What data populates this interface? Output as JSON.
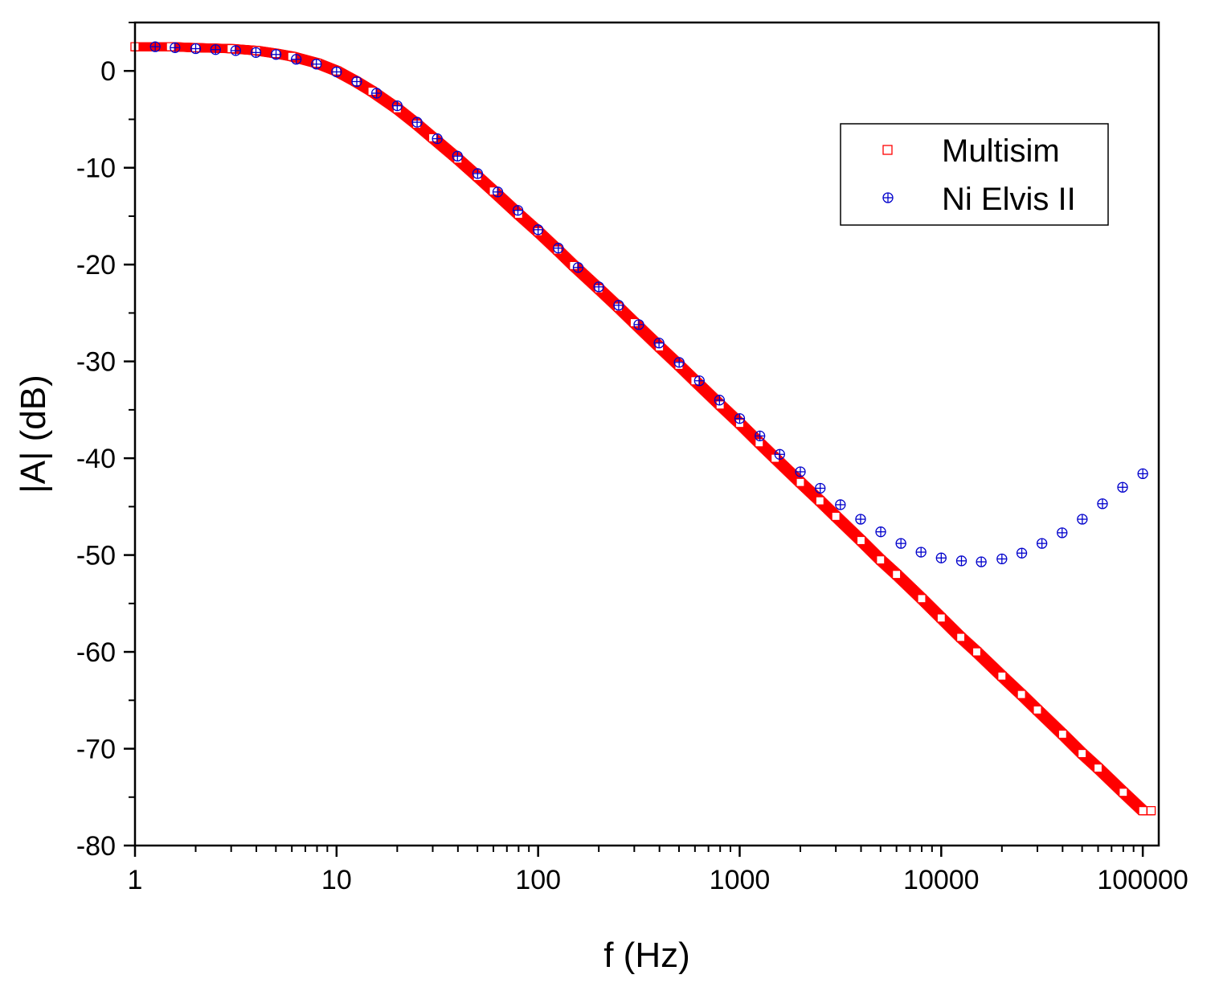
{
  "chart_data": {
    "type": "scatter",
    "xlabel": "f (Hz)",
    "ylabel": "|A| (dB)",
    "x_scale": "log",
    "xlim": [
      1,
      120000
    ],
    "ylim": [
      -80,
      5
    ],
    "x_ticks": [
      1,
      10,
      100,
      1000,
      10000,
      100000
    ],
    "x_tick_labels": [
      "1",
      "10",
      "100",
      "1000",
      "10000",
      "100000"
    ],
    "y_ticks": [
      0,
      -10,
      -20,
      -30,
      -40,
      -50,
      -60,
      -70,
      -80
    ],
    "y_tick_labels": [
      "0",
      "-10",
      "-20",
      "-30",
      "-40",
      "-50",
      "-60",
      "-70",
      "-80"
    ],
    "grid": false,
    "legend": "top-right",
    "series": [
      {
        "name": "Multisim",
        "marker": "open-square",
        "color": "#ff0000",
        "x": [
          1,
          1.5,
          2,
          3,
          4,
          5,
          6,
          8,
          10,
          12.5,
          15,
          20,
          25,
          30,
          40,
          50,
          60,
          80,
          100,
          125,
          150,
          200,
          250,
          300,
          400,
          500,
          600,
          800,
          1000,
          1250,
          1500,
          2000,
          2500,
          3000,
          4000,
          5000,
          6000,
          8000,
          10000,
          12500,
          15000,
          20000,
          25000,
          30000,
          40000,
          50000,
          60000,
          80000,
          100000,
          110000
        ],
        "y": [
          2.5,
          2.5,
          2.4,
          2.3,
          2.1,
          1.8,
          1.5,
          0.8,
          0.0,
          -1.1,
          -2.1,
          -3.9,
          -5.5,
          -6.9,
          -9.1,
          -10.9,
          -12.4,
          -14.8,
          -16.6,
          -18.5,
          -20.1,
          -22.5,
          -24.4,
          -26.0,
          -28.5,
          -30.4,
          -32.0,
          -34.5,
          -36.4,
          -38.4,
          -40.0,
          -42.5,
          -44.4,
          -46.0,
          -48.5,
          -50.5,
          -52.0,
          -54.5,
          -56.5,
          -58.5,
          -60.0,
          -62.5,
          -64.4,
          -66.0,
          -68.5,
          -70.5,
          -72.0,
          -74.5,
          -76.4,
          -76.4
        ]
      },
      {
        "name": "Ni Elvis II",
        "marker": "circle-plus",
        "color": "#0000cc",
        "x": [
          1.26,
          1.58,
          2.0,
          2.51,
          3.16,
          3.98,
          5.01,
          6.31,
          7.94,
          10,
          12.6,
          15.8,
          20,
          25.1,
          31.6,
          39.8,
          50.1,
          63.1,
          79.4,
          100,
          126,
          158,
          200,
          251,
          316,
          398,
          501,
          631,
          794,
          1000,
          1260,
          1580,
          2000,
          2510,
          3160,
          3980,
          5010,
          6310,
          7940,
          10000,
          12600,
          15800,
          20000,
          25100,
          31600,
          39800,
          50100,
          63100,
          79400,
          100000
        ],
        "y": [
          2.5,
          2.4,
          2.3,
          2.2,
          2.1,
          1.9,
          1.7,
          1.2,
          0.7,
          -0.1,
          -1.1,
          -2.3,
          -3.6,
          -5.3,
          -7.0,
          -8.8,
          -10.6,
          -12.5,
          -14.4,
          -16.4,
          -18.3,
          -20.3,
          -22.3,
          -24.2,
          -26.2,
          -28.1,
          -30.1,
          -32.0,
          -34.0,
          -35.9,
          -37.7,
          -39.6,
          -41.4,
          -43.1,
          -44.8,
          -46.3,
          -47.6,
          -48.8,
          -49.7,
          -50.3,
          -50.6,
          -50.7,
          -50.4,
          -49.8,
          -48.8,
          -47.7,
          -46.3,
          -44.7,
          -43.0,
          -41.6
        ]
      }
    ]
  }
}
